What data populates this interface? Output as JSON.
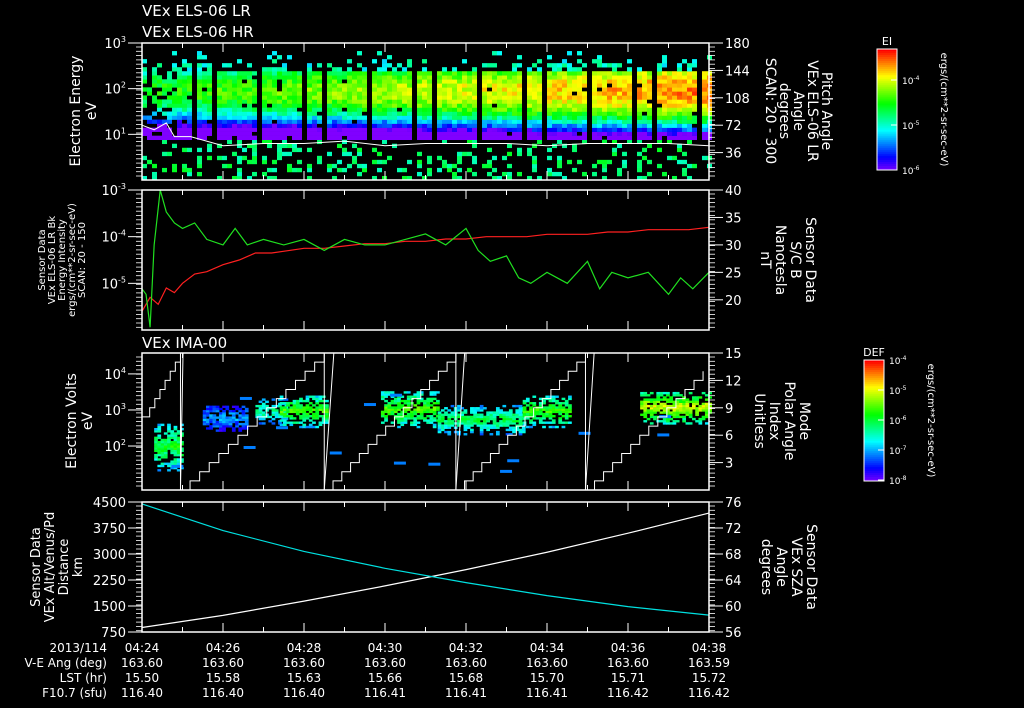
{
  "titles": {
    "line1": "VEx ELS-06 LR",
    "line2": "VEx ELS-06 HR",
    "panel3": "VEx IMA-00"
  },
  "colors": {
    "red": "#ff2020",
    "green": "#20e020",
    "cyan": "#00e0e0",
    "white": "#ffffff",
    "background": "#000000"
  },
  "time_axis": {
    "start": "04:24",
    "end": "04:38",
    "range_minutes": [
      0,
      14
    ],
    "rows": [
      {
        "label": "2013/114",
        "values": [
          "04:24",
          "04:26",
          "04:28",
          "04:30",
          "04:32",
          "04:34",
          "04:36",
          "04:38"
        ]
      },
      {
        "label": "V-E Ang (deg)",
        "values": [
          "163.60",
          "163.60",
          "163.60",
          "163.60",
          "163.60",
          "163.60",
          "163.60",
          "163.59"
        ]
      },
      {
        "label": "LST (hr)",
        "values": [
          "15.50",
          "15.58",
          "15.63",
          "15.66",
          "15.68",
          "15.70",
          "15.71",
          "15.72"
        ]
      },
      {
        "label": "F10.7 (sfu)",
        "values": [
          "116.40",
          "116.40",
          "116.40",
          "116.41",
          "116.41",
          "116.41",
          "116.42",
          "116.42"
        ]
      }
    ]
  },
  "colorbars": [
    {
      "title": "EI",
      "units": "ergs/(cm**2-sr-sec-eV)",
      "ticks": [
        {
          "base": "10",
          "exp": "-4"
        },
        {
          "base": "10",
          "exp": "-5"
        },
        {
          "base": "10",
          "exp": "-6"
        }
      ]
    },
    {
      "title": "DEF",
      "units": "ergs/(cm**2-sr-sec-eV)",
      "ticks": [
        {
          "base": "10",
          "exp": "-4"
        },
        {
          "base": "10",
          "exp": "-5"
        },
        {
          "base": "10",
          "exp": "-6"
        },
        {
          "base": "10",
          "exp": "-7"
        },
        {
          "base": "10",
          "exp": "-8"
        }
      ]
    }
  ],
  "chart_data": [
    {
      "type": "heatmap",
      "title": "VEx ELS-06 LR / VEx ELS-06 HR",
      "ylabel": [
        "Electron Energy",
        "eV"
      ],
      "ylim_log10": [
        0,
        3
      ],
      "yticks": [
        {
          "base": "10",
          "exp": "3"
        },
        {
          "base": "10",
          "exp": "2"
        },
        {
          "base": "10",
          "exp": "1"
        }
      ],
      "y2label": [
        "Pitch Angle",
        "VEx ELS-06 LR",
        "Angle",
        "degrees",
        "SCAN: 20 - 300"
      ],
      "y2lim": [
        0,
        180
      ],
      "y2ticks": [
        "180",
        "144",
        "108",
        "72",
        "36"
      ],
      "peak_log10_energy": 1.95,
      "intensity_trend": [
        0.55,
        0.9
      ],
      "white_line_log10": {
        "t": [
          0,
          0.3,
          0.6,
          0.8,
          1.2,
          2,
          3,
          4,
          5,
          6,
          7,
          8,
          9,
          10,
          11,
          12,
          13,
          14
        ],
        "v": [
          1.2,
          1.1,
          1.25,
          0.95,
          0.95,
          0.75,
          0.8,
          0.8,
          0.85,
          0.75,
          0.8,
          0.8,
          0.8,
          0.75,
          0.8,
          0.8,
          0.8,
          0.75
        ]
      }
    },
    {
      "type": "line",
      "ylabel": [
        "Sensor Data",
        "VEx ELS-06 LR Bk",
        "Energy Intensity",
        "ergs/(cm**2-sr-sec-eV)",
        "SCAN: 20 - 150"
      ],
      "ylim_log10": [
        -6,
        -3
      ],
      "yticks": [
        {
          "base": "10",
          "exp": "-3"
        },
        {
          "base": "10",
          "exp": "-4"
        },
        {
          "base": "10",
          "exp": "-5"
        }
      ],
      "y2label": [
        "Sensor Data",
        "S/C B",
        "Nanotesla",
        "nT"
      ],
      "y2lim": [
        14.5,
        40
      ],
      "y2ticks": [
        "40",
        "35",
        "30",
        "25",
        "20"
      ],
      "series": [
        {
          "name": "Energy Intensity",
          "axis": "left",
          "color": "red",
          "t": [
            0,
            0.2,
            0.4,
            0.6,
            0.8,
            1.0,
            1.3,
            1.6,
            2.0,
            2.4,
            2.8,
            3.2,
            3.6,
            4.0,
            4.5,
            5,
            5.5,
            6,
            6.5,
            7,
            7.5,
            8,
            8.5,
            9,
            9.5,
            10,
            10.5,
            11,
            11.5,
            12,
            12.5,
            13,
            13.5,
            14
          ],
          "log10": [
            -5.6,
            -5.3,
            -5.45,
            -5.1,
            -5.2,
            -5.0,
            -4.8,
            -4.75,
            -4.6,
            -4.5,
            -4.35,
            -4.35,
            -4.3,
            -4.25,
            -4.25,
            -4.2,
            -4.15,
            -4.15,
            -4.1,
            -4.1,
            -4.05,
            -4.05,
            -4.0,
            -4.0,
            -4.0,
            -3.95,
            -3.95,
            -3.95,
            -3.9,
            -3.9,
            -3.85,
            -3.85,
            -3.85,
            -3.8
          ]
        },
        {
          "name": "S/C B",
          "axis": "right",
          "color": "green",
          "t": [
            0,
            0.1,
            0.2,
            0.3,
            0.45,
            0.6,
            0.8,
            1.0,
            1.3,
            1.6,
            2.0,
            2.3,
            2.6,
            3.0,
            3.5,
            4.0,
            4.5,
            5,
            5.5,
            6,
            6.5,
            7,
            7.5,
            8,
            8.3,
            8.6,
            9,
            9.3,
            9.6,
            10,
            10.5,
            11,
            11.3,
            11.6,
            12,
            12.5,
            13,
            13.3,
            13.6,
            14
          ],
          "v": [
            22,
            21,
            15,
            30,
            40,
            36,
            34,
            33,
            34,
            31,
            30,
            33,
            30,
            31,
            30,
            31,
            29,
            31,
            30,
            30,
            31,
            32,
            30,
            33,
            29,
            27,
            28,
            24,
            23,
            25,
            23,
            27,
            22,
            25,
            24,
            25,
            21,
            24,
            22,
            25
          ]
        }
      ]
    },
    {
      "type": "heatmap",
      "title": "VEx IMA-00",
      "ylabel": [
        "Electron Volts",
        "eV"
      ],
      "ylim_log10": [
        0.78,
        4.58
      ],
      "yticks": [
        {
          "base": "10",
          "exp": "4"
        },
        {
          "base": "10",
          "exp": "3"
        },
        {
          "base": "10",
          "exp": "2"
        }
      ],
      "y2label": [
        "Mode",
        "Polar Angle",
        "Index",
        "Unitless"
      ],
      "y2lim": [
        0,
        15
      ],
      "y2ticks": [
        "15",
        "12",
        "9",
        "6",
        "3"
      ],
      "mode_resets_minutes": [
        0.95,
        4.5,
        7.75,
        10.95
      ],
      "clusters": [
        {
          "t": [
            0.3,
            0.95
          ],
          "log10E": [
            1.3,
            2.6
          ],
          "level": 0.55
        },
        {
          "t": [
            1.5,
            2.6
          ],
          "log10E": [
            2.4,
            3.1
          ],
          "level": 0.25
        },
        {
          "t": [
            2.8,
            3.6
          ],
          "log10E": [
            2.6,
            3.3
          ],
          "level": 0.45
        },
        {
          "t": [
            3.4,
            4.6
          ],
          "log10E": [
            2.5,
            3.4
          ],
          "level": 0.6
        },
        {
          "t": [
            5.9,
            7.3
          ],
          "log10E": [
            2.5,
            3.5
          ],
          "level": 0.62
        },
        {
          "t": [
            7.3,
            9.4
          ],
          "log10E": [
            2.3,
            3.1
          ],
          "level": 0.5
        },
        {
          "t": [
            9.4,
            10.6
          ],
          "log10E": [
            2.5,
            3.4
          ],
          "level": 0.6
        },
        {
          "t": [
            12.3,
            14
          ],
          "log10E": [
            2.6,
            3.5
          ],
          "level": 0.75
        }
      ]
    },
    {
      "type": "line",
      "ylabel": [
        "Sensor Data",
        "VEx Alt/Venus/Pd",
        "Distance",
        "km"
      ],
      "ylim": [
        750,
        4500
      ],
      "yticks": [
        "4500",
        "3750",
        "3000",
        "2250",
        "1500",
        "750"
      ],
      "y2label": [
        "Sensor Data",
        "VEx SZA",
        "Angle",
        "degrees"
      ],
      "y2lim": [
        56,
        76
      ],
      "y2ticks": [
        "76",
        "72",
        "68",
        "64",
        "60",
        "56"
      ],
      "series": [
        {
          "name": "Altitude",
          "axis": "left",
          "color": "white",
          "t": [
            0,
            2,
            4,
            6,
            8,
            10,
            12,
            14
          ],
          "v": [
            880,
            1230,
            1640,
            2080,
            2550,
            3050,
            3600,
            4180
          ]
        },
        {
          "name": "SZA",
          "axis": "right",
          "color": "cyan",
          "t": [
            0,
            2,
            4,
            6,
            8,
            10,
            12,
            14
          ],
          "v": [
            75.7,
            71.6,
            68.4,
            65.8,
            63.6,
            61.6,
            59.9,
            58.6
          ]
        }
      ]
    }
  ]
}
